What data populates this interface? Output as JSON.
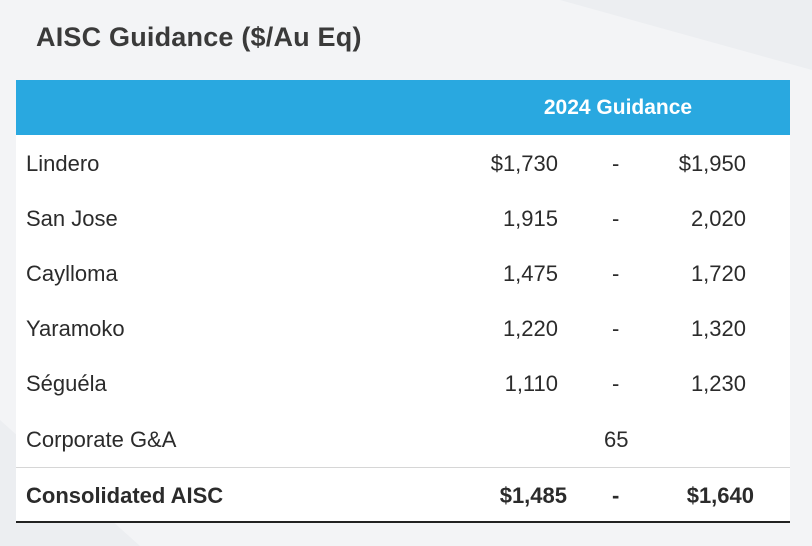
{
  "title": "AISC Guidance ($/Au Eq)",
  "header": {
    "guidance_label": "2024 Guidance"
  },
  "rows": [
    {
      "name": "Lindero",
      "low": "$1,730",
      "sep": "-",
      "high": "$1,950"
    },
    {
      "name": "San Jose",
      "low": "1,915",
      "sep": "-",
      "high": "2,020"
    },
    {
      "name": "Caylloma",
      "low": "1,475",
      "sep": "-",
      "high": "1,720"
    },
    {
      "name": "Yaramoko",
      "low": "1,220",
      "sep": "-",
      "high": "1,320"
    },
    {
      "name": "Séguéla",
      "low": "1,110",
      "sep": "-",
      "high": "1,230"
    }
  ],
  "corporate": {
    "name": "Corporate G&A",
    "value": "65"
  },
  "total": {
    "name": "Consolidated AISC",
    "low": "$1,485",
    "sep": "-",
    "high": "$1,640"
  }
}
